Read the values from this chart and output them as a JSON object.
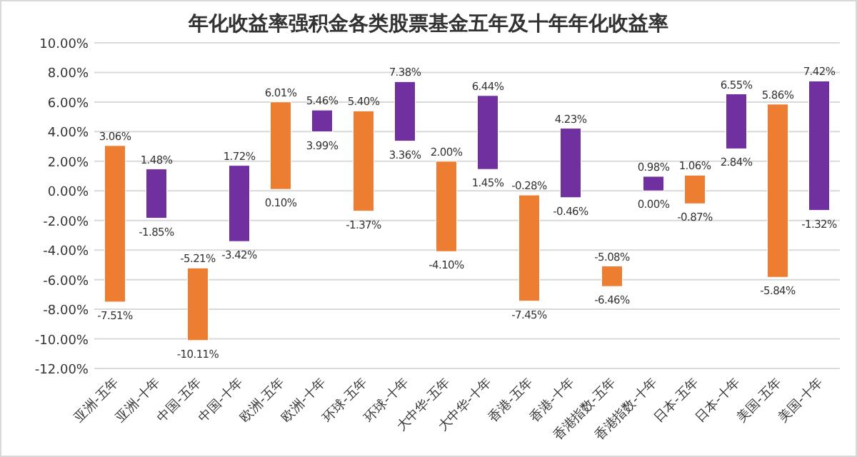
{
  "chart_data": {
    "type": "bar",
    "title": "年化收益率强积金各类股票基金五年及十年年化收益率",
    "categories": [
      "亚洲-五年",
      "亚洲-十年",
      "中国-五年",
      "中国-十年",
      "欧洲-五年",
      "欧洲-十年",
      "环球-五年",
      "环球-十年",
      "大中华-五年",
      "大中华-十年",
      "香港-五年",
      "香港-十年",
      "香港指数-五年",
      "香港指数-十年",
      "日本-五年",
      "日本-十年",
      "美国-五年",
      "美国-十年"
    ],
    "base": [
      -7.51,
      -1.85,
      -10.11,
      -3.42,
      0.1,
      3.99,
      -1.37,
      3.36,
      -4.1,
      1.45,
      -7.45,
      -0.46,
      -6.46,
      0.0,
      -0.87,
      2.84,
      -5.84,
      -1.32
    ],
    "values": [
      10.57,
      3.33,
      4.9,
      5.14,
      5.91,
      1.47,
      6.77,
      4.02,
      6.1,
      4.99,
      7.17,
      4.69,
      1.38,
      0.98,
      1.93,
      3.71,
      11.7,
      8.74
    ],
    "colors": [
      "#ed7d31",
      "#7030a0",
      "#ed7d31",
      "#7030a0",
      "#ed7d31",
      "#7030a0",
      "#ed7d31",
      "#7030a0",
      "#ed7d31",
      "#7030a0",
      "#ed7d31",
      "#7030a0",
      "#ed7d31",
      "#7030a0",
      "#ed7d31",
      "#7030a0",
      "#ed7d31",
      "#7030a0"
    ],
    "ylim": [
      -12,
      10
    ],
    "yticks": [
      {
        "value": -12,
        "label": "-12.00%"
      },
      {
        "value": -10,
        "label": "-10.00%"
      },
      {
        "value": -8,
        "label": "-8.00%"
      },
      {
        "value": -6,
        "label": "-6.00%"
      },
      {
        "value": -4,
        "label": "-4.00%"
      },
      {
        "value": -2,
        "label": "-2.00%"
      },
      {
        "value": 0,
        "label": "0.00%"
      },
      {
        "value": 2,
        "label": "2.00%"
      },
      {
        "value": 4,
        "label": "4.00%"
      },
      {
        "value": 6,
        "label": "6.00%"
      },
      {
        "value": 8,
        "label": "8.00%"
      },
      {
        "value": 10,
        "label": "10.00%"
      }
    ],
    "grid": "y",
    "annotations": [
      {
        "text": "3.06%",
        "x": "亚洲-五年",
        "y": 3.06
      },
      {
        "text": "-7.51%",
        "x": "亚洲-五年",
        "y": -7.51
      },
      {
        "text": "1.48%",
        "x": "亚洲-十年",
        "y": 1.48
      },
      {
        "text": "-1.85%",
        "x": "亚洲-十年",
        "y": -1.85
      },
      {
        "text": "-5.21%",
        "x": "中国-五年",
        "y": -5.21
      },
      {
        "text": "-10.11%",
        "x": "中国-五年",
        "y": -10.11
      },
      {
        "text": "1.72%",
        "x": "中国-十年",
        "y": 1.72
      },
      {
        "text": "-3.42%",
        "x": "中国-十年",
        "y": -3.42
      },
      {
        "text": "6.01%",
        "x": "欧洲-五年",
        "y": 6.01
      },
      {
        "text": "0.10%",
        "x": "欧洲-五年",
        "y": 0.1
      },
      {
        "text": "5.46%",
        "x": "欧洲-十年",
        "y": 5.46
      },
      {
        "text": "3.99%",
        "x": "欧洲-十年",
        "y": 3.99
      },
      {
        "text": "5.40%",
        "x": "环球-五年",
        "y": 5.4
      },
      {
        "text": "-1.37%",
        "x": "环球-五年",
        "y": -1.37
      },
      {
        "text": "7.38%",
        "x": "环球-十年",
        "y": 7.38
      },
      {
        "text": "3.36%",
        "x": "环球-十年",
        "y": 3.36
      },
      {
        "text": "2.00%",
        "x": "大中华-五年",
        "y": 2.0
      },
      {
        "text": "-4.10%",
        "x": "大中华-五年",
        "y": -4.1
      },
      {
        "text": "6.44%",
        "x": "大中华-十年",
        "y": 6.44
      },
      {
        "text": "1.45%",
        "x": "大中华-十年",
        "y": 1.45
      },
      {
        "text": "-0.28%",
        "x": "香港-五年",
        "y": -0.28
      },
      {
        "text": "-7.45%",
        "x": "香港-五年",
        "y": -7.45
      },
      {
        "text": "4.23%",
        "x": "香港-十年",
        "y": 4.23
      },
      {
        "text": "-0.46%",
        "x": "香港-十年",
        "y": -0.46
      },
      {
        "text": "-5.08%",
        "x": "香港指数-五年",
        "y": -5.08
      },
      {
        "text": "-6.46%",
        "x": "香港指数-五年",
        "y": -6.46
      },
      {
        "text": "0.98%",
        "x": "香港指数-十年",
        "y": 0.98
      },
      {
        "text": "0.00%",
        "x": "香港指数-十年",
        "y": 0.0
      },
      {
        "text": "1.06%",
        "x": "日本-五年",
        "y": 1.06
      },
      {
        "text": "-0.87%",
        "x": "日本-五年",
        "y": -0.87
      },
      {
        "text": "6.55%",
        "x": "日本-十年",
        "y": 6.55
      },
      {
        "text": "2.84%",
        "x": "日本-十年",
        "y": 2.84
      },
      {
        "text": "5.86%",
        "x": "美国-五年",
        "y": 5.86
      },
      {
        "text": "-5.84%",
        "x": "美国-五年",
        "y": -5.84
      },
      {
        "text": "7.42%",
        "x": "美国-十年",
        "y": 7.42
      },
      {
        "text": "-1.32%",
        "x": "美国-十年",
        "y": -1.32
      }
    ]
  }
}
